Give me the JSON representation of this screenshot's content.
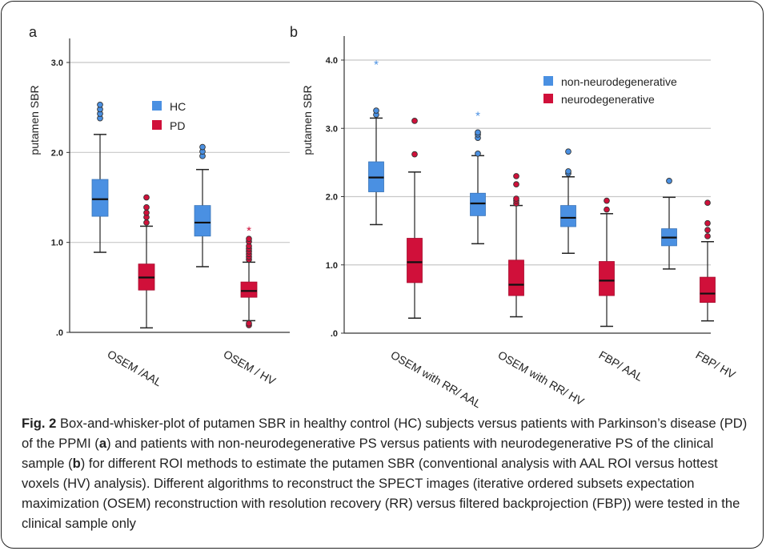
{
  "chart_data": [
    {
      "panel": "a",
      "type": "boxplot",
      "ylabel": "putamen SBR",
      "ylim": [
        0,
        3.0
      ],
      "yticks": [
        0,
        1.0,
        2.0,
        3.0
      ],
      "ytick_labels": [
        ".0",
        "1.0",
        "2.0",
        "3.0"
      ],
      "grid": true,
      "legend_position": "top-right",
      "categories": [
        "OSEM /AAL",
        "OSEM / HV"
      ],
      "series": [
        {
          "name": "HC",
          "color": "#4a90e2",
          "boxes": [
            {
              "whisker_low": 0.89,
              "q1": 1.29,
              "median": 1.48,
              "q3": 1.7,
              "whisker_high": 2.2,
              "outliers": [
                2.38,
                2.43,
                2.48,
                2.53
              ]
            },
            {
              "whisker_low": 0.73,
              "q1": 1.07,
              "median": 1.22,
              "q3": 1.41,
              "whisker_high": 1.81,
              "outliers": [
                1.96,
                2.01,
                2.06
              ]
            }
          ]
        },
        {
          "name": "PD",
          "color": "#d0103a",
          "boxes": [
            {
              "whisker_low": 0.05,
              "q1": 0.47,
              "median": 0.61,
              "q3": 0.76,
              "whisker_high": 1.18,
              "outliers": [
                1.22,
                1.28,
                1.33,
                1.39,
                1.5
              ]
            },
            {
              "whisker_low": 0.13,
              "q1": 0.39,
              "median": 0.46,
              "q3": 0.56,
              "whisker_high": 0.78,
              "outliers": [
                0.08,
                0.1,
                0.81,
                0.84,
                0.87,
                0.9,
                0.93,
                0.96,
                1.01,
                1.04
              ],
              "extremes": [
                1.15
              ]
            }
          ]
        }
      ]
    },
    {
      "panel": "b",
      "type": "boxplot",
      "ylabel": "putamen SBR",
      "ylim": [
        0,
        4.0
      ],
      "yticks": [
        0,
        1.0,
        2.0,
        3.0,
        4.0
      ],
      "ytick_labels": [
        ".0",
        "1.0",
        "2.0",
        "3.0",
        "4.0"
      ],
      "grid": true,
      "legend_position": "top-right",
      "categories": [
        "OSEM with RR/ AAL",
        "OSEM with RR/ HV",
        "FBP/ AAL",
        "FBP/ HV"
      ],
      "series": [
        {
          "name": "non-neurodegenerative",
          "color": "#4a90e2",
          "boxes": [
            {
              "whisker_low": 1.59,
              "q1": 2.07,
              "median": 2.28,
              "q3": 2.51,
              "whisker_high": 3.15,
              "outliers": [
                3.2,
                3.26
              ],
              "extremes": [
                3.96
              ]
            },
            {
              "whisker_low": 1.31,
              "q1": 1.72,
              "median": 1.9,
              "q3": 2.05,
              "whisker_high": 2.6,
              "outliers": [
                2.63,
                2.86,
                2.91,
                2.94
              ],
              "extremes": [
                3.21
              ]
            },
            {
              "whisker_low": 1.17,
              "q1": 1.56,
              "median": 1.69,
              "q3": 1.87,
              "whisker_high": 2.29,
              "outliers": [
                2.34,
                2.37,
                2.66
              ]
            },
            {
              "whisker_low": 0.94,
              "q1": 1.28,
              "median": 1.4,
              "q3": 1.53,
              "whisker_high": 1.99,
              "outliers": [
                2.23
              ]
            }
          ]
        },
        {
          "name": "neurodegenerative",
          "color": "#d0103a",
          "boxes": [
            {
              "whisker_low": 0.22,
              "q1": 0.74,
              "median": 1.04,
              "q3": 1.39,
              "whisker_high": 2.36,
              "outliers": [
                2.62,
                3.11
              ]
            },
            {
              "whisker_low": 0.24,
              "q1": 0.55,
              "median": 0.71,
              "q3": 1.07,
              "whisker_high": 1.87,
              "outliers": [
                1.9,
                1.94,
                1.97,
                2.18,
                2.3
              ]
            },
            {
              "whisker_low": 0.1,
              "q1": 0.55,
              "median": 0.77,
              "q3": 1.05,
              "whisker_high": 1.75,
              "outliers": [
                1.81,
                1.94
              ]
            },
            {
              "whisker_low": 0.18,
              "q1": 0.45,
              "median": 0.58,
              "q3": 0.82,
              "whisker_high": 1.34,
              "outliers": [
                1.42,
                1.51,
                1.61,
                1.91
              ]
            }
          ]
        }
      ]
    }
  ],
  "caption": {
    "fig_label": "Fig. 2",
    "t1": " Box-and-whisker-plot of putamen SBR in healthy control (HC) subjects versus patients with Parkinson’s disease (PD) of the PPMI (",
    "a": "a",
    "t2": ") and patients with non-neurodegenerative PS versus patients with neurodegenerative PS of the clinical sample (",
    "b": "b",
    "t3": ") for different ROI methods to estimate the putamen SBR (conventional analysis with AAL ROI versus hottest voxels (HV) analysis). Different algorithms to reconstruct the SPECT images (iterative ordered subsets expectation maximization (OSEM) reconstruction with resolution recovery (RR) versus filtered backprojection (FBP)) were tested in the clinical sample only"
  }
}
